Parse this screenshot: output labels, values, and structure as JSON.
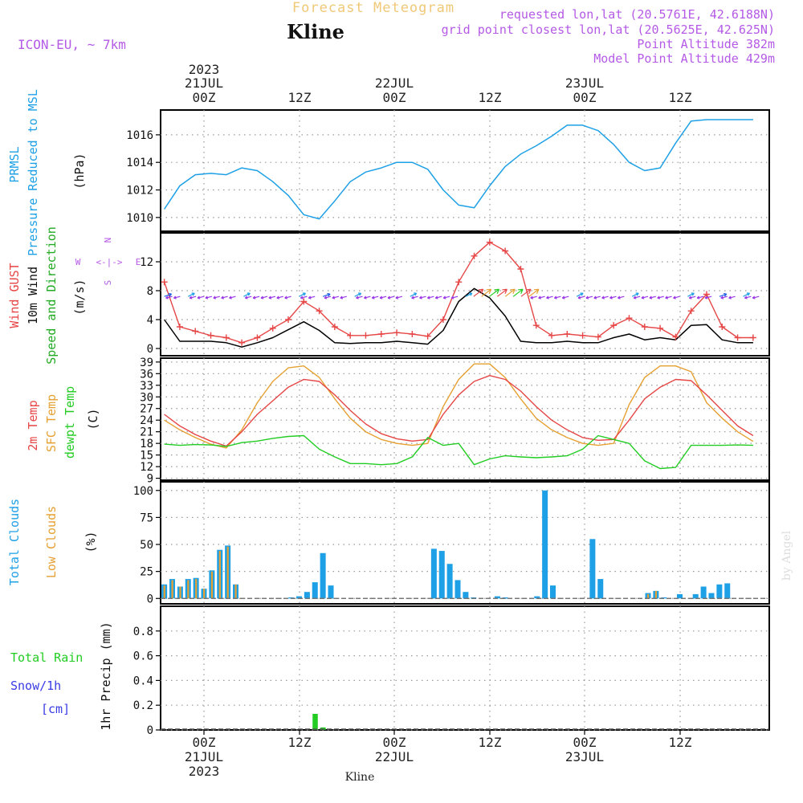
{
  "header": {
    "title": "Forecast Meteogram",
    "station": "Kline",
    "model": "ICON-EU, ~ 7km",
    "requested": "requested lon,lat (20.5761E, 42.6188N)",
    "gridpoint": "grid point closest lon,lat (20.5625E, 42.625N)",
    "point_alt": "Point Altitude 382m",
    "model_alt": "Model Point Altitude 429m"
  },
  "top_axis": {
    "year": "2023",
    "date_labels": [
      "21JUL",
      "22JUL",
      "23JUL"
    ],
    "ticks": [
      "00Z",
      "12Z",
      "00Z",
      "12Z",
      "00Z",
      "12Z"
    ]
  },
  "bottom_axis": {
    "ticks": [
      "00Z",
      "12Z",
      "00Z",
      "12Z",
      "00Z",
      "12Z"
    ],
    "date_labels": [
      "21JUL",
      "22JUL",
      "23JUL"
    ],
    "year": "2023",
    "station": "Kline"
  },
  "watermark": "by Angel",
  "colors": {
    "pressure": "#1ea0e6",
    "gust": "#e64646",
    "wind": "#000000",
    "wind_dir": "#22aa22",
    "t2m": "#e64646",
    "tsfc": "#e6a032",
    "dewpt": "#22cc22",
    "total_clouds": "#1ea0e6",
    "low_clouds": "#e6a032",
    "rain": "#22cc22",
    "snow": "#3a3ae6",
    "header_purple": "#b45ae6",
    "title_orange": "#f0c878",
    "grid": "#999999"
  },
  "panels": {
    "pressure": {
      "label_line1": "PRMSL",
      "label_line2": "Pressure Reduced to MSL",
      "unit": "(hPa)",
      "ticks": [
        "1010",
        "1012",
        "1014",
        "1016"
      ]
    },
    "wind": {
      "label_gust": "Wind GUST",
      "label_wind": "10m Wind",
      "label_dir": "Speed and Direction",
      "unit": "(m/s)",
      "ticks": [
        "0",
        "4",
        "8",
        "12"
      ],
      "compass": {
        "n": "N",
        "s": "S",
        "w": "W",
        "e": "E",
        "arrows": "<-|->"
      }
    },
    "temp": {
      "label_t2m": "2m Temp",
      "label_tsfc": "SFC Temp",
      "label_dew": "dewpt Temp",
      "unit": "(C)",
      "ticks": [
        "9",
        "12",
        "15",
        "18",
        "21",
        "24",
        "27",
        "30",
        "33",
        "36",
        "39"
      ]
    },
    "clouds": {
      "label_total": "Total Clouds",
      "label_low": "Low Clouds",
      "unit": "(%)",
      "ticks": [
        "0",
        "25",
        "50",
        "75",
        "100"
      ]
    },
    "precip": {
      "label_rain": "Total Rain",
      "label_snow": "Snow/1h",
      "label_cm": "[cm]",
      "axis_label": "1hr Precip (mm)",
      "ticks": [
        "0",
        "0.2",
        "0.4",
        "0.6",
        "0.8"
      ]
    }
  },
  "chart_data": {
    "type": "line",
    "title": "Forecast Meteogram",
    "x_unit": "hours since 2023-07-20 20Z",
    "x_range": [
      0,
      76
    ],
    "x": [
      0,
      2,
      4,
      6,
      8,
      10,
      12,
      14,
      16,
      18,
      20,
      22,
      24,
      26,
      28,
      30,
      32,
      34,
      36,
      38,
      40,
      42,
      44,
      46,
      48,
      50,
      52,
      54,
      56,
      58,
      60,
      62,
      64,
      66,
      68,
      70,
      72,
      74,
      76
    ],
    "series": [
      {
        "name": "PRMSL",
        "unit": "hPa",
        "ylim": [
          1009,
          1017.8
        ],
        "values": [
          1010.6,
          1012.3,
          1013.1,
          1013.2,
          1013.1,
          1013.6,
          1013.4,
          1012.6,
          1011.6,
          1010.2,
          1009.9,
          1011.2,
          1012.6,
          1013.3,
          1013.6,
          1014.0,
          1014.0,
          1013.5,
          1012.0,
          1010.9,
          1010.7,
          1012.3,
          1013.7,
          1014.6,
          1015.2,
          1015.9,
          1016.7,
          1016.7,
          1016.3,
          1015.3,
          1014.0,
          1013.4,
          1013.6,
          1015.4,
          1017.0,
          1017.1,
          1017.1,
          1017.1,
          1017.1
        ]
      },
      {
        "name": "Wind GUST",
        "unit": "m/s",
        "ylim": [
          -1,
          16
        ],
        "values": [
          9.2,
          3.0,
          2.4,
          1.8,
          1.5,
          0.8,
          1.5,
          2.8,
          4.0,
          6.5,
          5.2,
          3.0,
          1.8,
          1.8,
          2.0,
          2.2,
          2.0,
          1.7,
          4.0,
          9.2,
          12.8,
          14.7,
          13.5,
          11.0,
          3.2,
          1.8,
          2.0,
          1.8,
          1.6,
          3.2,
          4.2,
          3.0,
          2.8,
          1.6,
          5.2,
          7.5,
          3.0,
          1.5,
          1.5
        ]
      },
      {
        "name": "10m Wind",
        "unit": "m/s",
        "ylim": [
          -1,
          16
        ],
        "values": [
          4.0,
          1.0,
          1.0,
          1.0,
          0.8,
          0.2,
          0.8,
          1.5,
          2.6,
          3.7,
          2.5,
          0.8,
          0.7,
          0.8,
          0.8,
          1.0,
          0.8,
          0.6,
          2.5,
          6.5,
          8.3,
          7.0,
          4.5,
          1.0,
          0.8,
          0.8,
          1.0,
          0.8,
          0.8,
          1.5,
          2.0,
          1.2,
          1.5,
          1.2,
          3.2,
          3.3,
          1.2,
          0.8,
          0.8
        ]
      },
      {
        "name": "2m Temp",
        "unit": "C",
        "ylim": [
          8.5,
          40
        ],
        "values": [
          25.5,
          22.5,
          20.3,
          18.6,
          17.3,
          21.0,
          25.5,
          29.0,
          32.5,
          34.5,
          34.0,
          30.5,
          26.5,
          23.0,
          20.5,
          19.2,
          18.6,
          19.0,
          25.5,
          30.5,
          34.0,
          35.5,
          34.5,
          31.5,
          27.5,
          24.0,
          21.5,
          19.5,
          18.8,
          19.0,
          24.0,
          29.5,
          32.5,
          34.5,
          34.2,
          30.5,
          26.5,
          22.5,
          20.0
        ]
      },
      {
        "name": "SFC Temp",
        "unit": "C",
        "ylim": [
          8.5,
          40
        ],
        "values": [
          24.0,
          21.5,
          19.5,
          17.8,
          16.8,
          21.5,
          28.5,
          34.0,
          37.5,
          38.0,
          35.0,
          29.5,
          24.5,
          21.0,
          19.0,
          18.0,
          17.5,
          18.0,
          27.5,
          34.5,
          38.5,
          38.5,
          35.0,
          29.5,
          24.5,
          21.5,
          19.5,
          18.0,
          17.5,
          18.0,
          28.0,
          35.0,
          38.0,
          38.0,
          36.5,
          28.5,
          24.5,
          21.0,
          18.5
        ]
      },
      {
        "name": "dewpt Temp",
        "unit": "C",
        "ylim": [
          8.5,
          40
        ],
        "values": [
          17.8,
          17.5,
          17.7,
          17.6,
          17.2,
          18.2,
          18.6,
          19.3,
          19.8,
          20.0,
          16.5,
          14.5,
          12.8,
          12.8,
          12.5,
          12.8,
          14.5,
          19.5,
          17.5,
          18.0,
          12.5,
          14.0,
          14.8,
          14.5,
          14.3,
          14.5,
          14.8,
          16.5,
          20.0,
          19.0,
          18.0,
          13.5,
          11.5,
          11.8,
          17.5,
          17.5,
          17.5,
          17.6,
          17.5
        ]
      }
    ],
    "wind_direction_note": "wind direction arrows along 7.2 m/s level (purple: light, blue/green/orange/red during strong afternoon winds)",
    "clouds": {
      "ylim": [
        -5,
        108
      ],
      "x_hours": [
        0,
        1,
        2,
        3,
        4,
        5,
        6,
        7,
        8,
        9,
        10,
        11,
        12,
        13,
        14,
        15,
        16,
        17,
        18,
        19,
        20,
        21,
        22,
        23,
        24,
        25,
        26,
        27,
        28,
        29,
        30,
        31,
        32,
        33,
        34,
        35,
        36,
        37,
        38,
        39,
        40,
        41,
        42,
        43,
        44,
        45,
        46,
        47,
        48,
        49,
        50,
        51,
        52,
        53,
        54,
        55,
        56,
        57,
        58,
        59,
        60,
        61,
        62,
        63,
        64,
        65,
        66,
        67,
        68,
        69,
        70,
        71,
        72,
        73,
        74,
        75
      ],
      "total": [
        13,
        18,
        11,
        18,
        19,
        9,
        26,
        45,
        49,
        13,
        0,
        0,
        0,
        0,
        0,
        0,
        1,
        2,
        6,
        15,
        42,
        12,
        0,
        0,
        0,
        0,
        0,
        0,
        0,
        0,
        0,
        0,
        0,
        0,
        46,
        44,
        32,
        17,
        6,
        1,
        0,
        0,
        2,
        1,
        0,
        0,
        0,
        2,
        100,
        12,
        0,
        0,
        0,
        0,
        55,
        18,
        0,
        0,
        0,
        0,
        0,
        5,
        7,
        1,
        0,
        4,
        0,
        4,
        11,
        5,
        13,
        14,
        0,
        0,
        0,
        0
      ],
      "low": [
        12,
        17,
        11,
        17,
        18,
        9,
        25,
        44,
        48,
        13,
        0,
        0,
        0,
        0,
        0,
        0,
        0,
        0,
        0,
        0,
        0,
        0,
        0,
        0,
        0,
        0,
        0,
        0,
        0,
        0,
        0,
        0,
        0,
        0,
        0,
        0,
        0,
        0,
        0,
        0,
        0,
        0,
        0,
        0,
        0,
        0,
        0,
        0,
        0,
        0,
        0,
        0,
        0,
        0,
        0,
        0,
        0,
        0,
        0,
        0,
        0,
        4,
        7,
        0,
        0,
        0,
        0,
        0,
        0,
        0,
        0,
        0,
        0,
        0,
        0,
        0
      ]
    },
    "precip": {
      "ylim": [
        0,
        1.0
      ],
      "x_hours": [
        0,
        1,
        2,
        3,
        4,
        5,
        6,
        7,
        8,
        9,
        10,
        11,
        12,
        13,
        14,
        15,
        16,
        17,
        18,
        19,
        20,
        21,
        22,
        23,
        24,
        25,
        26,
        27,
        28,
        29,
        30,
        31,
        32,
        33,
        34,
        35,
        36,
        37,
        38,
        39,
        40,
        41,
        42,
        43,
        44,
        45,
        46,
        47,
        48,
        49,
        50,
        51,
        52,
        53,
        54,
        55,
        56,
        57,
        58,
        59,
        60,
        61,
        62,
        63,
        64,
        65,
        66,
        67,
        68,
        69,
        70,
        71,
        72,
        73,
        74,
        75
      ],
      "rain": [
        0,
        0,
        0,
        0,
        0,
        0,
        0,
        0,
        0,
        0,
        0,
        0,
        0,
        0,
        0,
        0,
        0,
        0,
        0,
        0.13,
        0.02,
        0,
        0,
        0,
        0,
        0,
        0,
        0,
        0,
        0,
        0,
        0,
        0,
        0,
        0,
        0,
        0,
        0,
        0,
        0,
        0,
        0,
        0,
        0,
        0,
        0,
        0,
        0,
        0,
        0,
        0,
        0,
        0,
        0,
        0,
        0,
        0,
        0,
        0,
        0,
        0,
        0,
        0,
        0,
        0,
        0,
        0,
        0,
        0,
        0,
        0,
        0,
        0,
        0,
        0,
        0
      ]
    }
  }
}
